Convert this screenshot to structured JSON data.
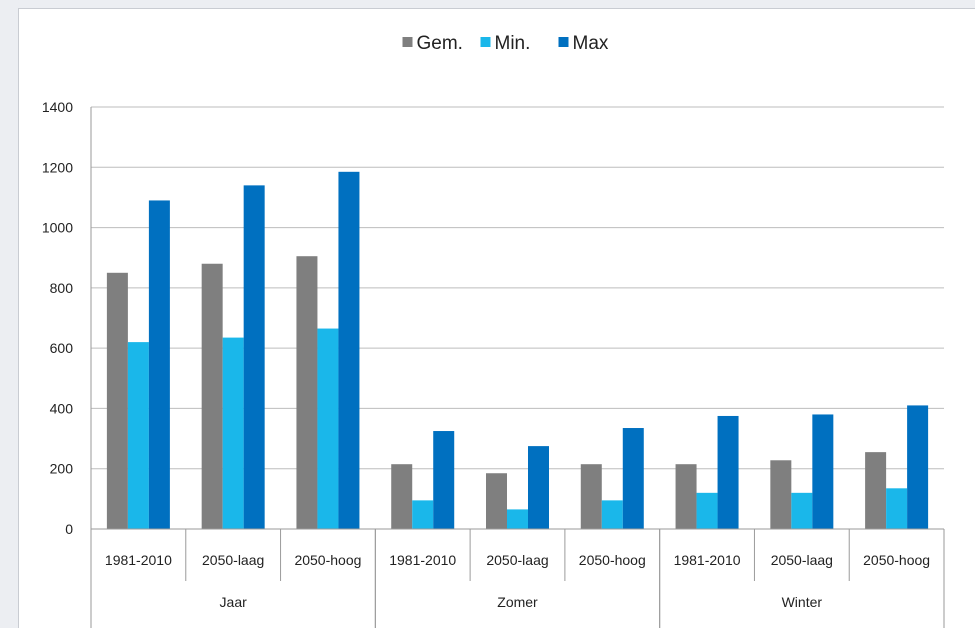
{
  "chart_data": {
    "type": "bar",
    "title": "",
    "xlabel": "",
    "ylabel": "",
    "ylim": [
      0,
      1400
    ],
    "yticks": [
      0,
      200,
      400,
      600,
      800,
      1000,
      1200,
      1400
    ],
    "grid": true,
    "legend_position": "top",
    "groups": [
      {
        "label": "Jaar",
        "categories": [
          "1981-2010",
          "2050-laag",
          "2050-hoog"
        ]
      },
      {
        "label": "Zomer",
        "categories": [
          "1981-2010",
          "2050-laag",
          "2050-hoog"
        ]
      },
      {
        "label": "Winter",
        "categories": [
          "1981-2010",
          "2050-laag",
          "2050-hoog"
        ]
      }
    ],
    "categories": [
      "1981-2010",
      "2050-laag",
      "2050-hoog",
      "1981-2010",
      "2050-laag",
      "2050-hoog",
      "1981-2010",
      "2050-laag",
      "2050-hoog"
    ],
    "series": [
      {
        "name": "Gem.",
        "color": "#7f7f7f",
        "values": [
          850,
          880,
          905,
          215,
          185,
          215,
          215,
          228,
          255
        ]
      },
      {
        "name": "Min.",
        "color": "#1ab7ea",
        "values": [
          620,
          635,
          665,
          95,
          65,
          95,
          120,
          120,
          135
        ]
      },
      {
        "name": "Max",
        "color": "#0070c0",
        "values": [
          1090,
          1140,
          1185,
          325,
          275,
          335,
          375,
          380,
          410
        ]
      }
    ]
  }
}
